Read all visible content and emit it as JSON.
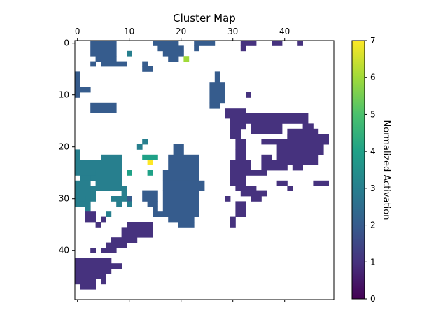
{
  "chart_data": {
    "type": "heatmap",
    "title": "Cluster Map",
    "x_ticks": [
      0,
      10,
      20,
      30,
      40
    ],
    "y_ticks": [
      0,
      10,
      20,
      30,
      40
    ],
    "colorbar": {
      "label": "Normalized Activation",
      "min": 0,
      "max": 7,
      "ticks": [
        0,
        1,
        2,
        3,
        4,
        5,
        6,
        7
      ],
      "colormap": "viridis"
    },
    "grid_size": [
      50,
      50
    ],
    "blank_cells": "white (no value)",
    "regions": [
      {
        "value": 2,
        "rects": [
          [
            3,
            0,
            8,
            3
          ],
          [
            4,
            3,
            8,
            4
          ],
          [
            5,
            4,
            10,
            5
          ],
          [
            3,
            4,
            4,
            5
          ],
          [
            15,
            0,
            20,
            1
          ],
          [
            16,
            1,
            21,
            2
          ],
          [
            17,
            2,
            21,
            3
          ],
          [
            18,
            3,
            20,
            4
          ],
          [
            23,
            0,
            27,
            1
          ],
          [
            23,
            1,
            24,
            2
          ],
          [
            13,
            4,
            14,
            5
          ],
          [
            13,
            5,
            15,
            6
          ],
          [
            27,
            6,
            28,
            8
          ],
          [
            26,
            8,
            29,
            12
          ],
          [
            26,
            12,
            28,
            13
          ],
          [
            0,
            6,
            1,
            10
          ],
          [
            1,
            9,
            3,
            10
          ],
          [
            0,
            10,
            1,
            11
          ],
          [
            3,
            12,
            8,
            14
          ],
          [
            19,
            20,
            21,
            22
          ],
          [
            18,
            22,
            24,
            25
          ],
          [
            17,
            25,
            24,
            27
          ],
          [
            17,
            27,
            25,
            29
          ],
          [
            17,
            29,
            24,
            33
          ],
          [
            15,
            33,
            24,
            34
          ],
          [
            18,
            34,
            23,
            35
          ],
          [
            20,
            35,
            23,
            36
          ],
          [
            13,
            29,
            16,
            31
          ],
          [
            14,
            31,
            16,
            32
          ],
          [
            15,
            32,
            16,
            33
          ],
          [
            10,
            30,
            11,
            31
          ]
        ]
      },
      {
        "value": 3,
        "rects": [
          [
            10,
            2,
            11,
            3
          ],
          [
            13,
            19,
            14,
            20
          ],
          [
            12,
            20,
            13,
            21
          ],
          [
            0,
            21,
            1,
            23
          ],
          [
            0,
            23,
            5,
            26
          ],
          [
            1,
            26,
            3,
            27
          ],
          [
            5,
            22,
            9,
            25
          ],
          [
            4,
            25,
            9,
            29
          ],
          [
            3,
            26,
            4,
            27
          ],
          [
            0,
            27,
            3,
            32
          ],
          [
            3,
            28,
            4,
            31
          ],
          [
            9,
            28,
            10,
            31
          ],
          [
            8,
            30,
            9,
            32
          ],
          [
            7,
            30,
            8,
            31
          ],
          [
            10,
            31,
            11,
            32
          ],
          [
            2,
            32,
            3,
            33
          ],
          [
            6,
            33,
            7,
            34
          ],
          [
            1,
            30,
            2,
            31
          ]
        ]
      },
      {
        "value": 1,
        "rects": [
          [
            32,
            0,
            35,
            1
          ],
          [
            38,
            0,
            40,
            1
          ],
          [
            43,
            0,
            44,
            1
          ],
          [
            32,
            1,
            33,
            2
          ],
          [
            33,
            10,
            34,
            11
          ],
          [
            29,
            13,
            33,
            15
          ],
          [
            30,
            15,
            33,
            17
          ],
          [
            33,
            14,
            45,
            16
          ],
          [
            34,
            16,
            40,
            18
          ],
          [
            30,
            17,
            32,
            19
          ],
          [
            31,
            19,
            33,
            21
          ],
          [
            41,
            17,
            47,
            20
          ],
          [
            44,
            16,
            46,
            17
          ],
          [
            39,
            20,
            48,
            22
          ],
          [
            41,
            18,
            49,
            20
          ],
          [
            36,
            19,
            49,
            20
          ],
          [
            39,
            22,
            47,
            24
          ],
          [
            37,
            23,
            43,
            24
          ],
          [
            36,
            22,
            38,
            25
          ],
          [
            38,
            24,
            41,
            25
          ],
          [
            42,
            24,
            44,
            25
          ],
          [
            31,
            21,
            33,
            23
          ],
          [
            30,
            23,
            34,
            25
          ],
          [
            30,
            25,
            37,
            26
          ],
          [
            30,
            26,
            33,
            28
          ],
          [
            31,
            28,
            35,
            29
          ],
          [
            32,
            29,
            37,
            30
          ],
          [
            34,
            30,
            36,
            31
          ],
          [
            39,
            27,
            41,
            28
          ],
          [
            46,
            27,
            49,
            28
          ],
          [
            41,
            28,
            42,
            29
          ],
          [
            31,
            31,
            33,
            34
          ],
          [
            30,
            34,
            31,
            36
          ],
          [
            29,
            30,
            30,
            31
          ],
          [
            9,
            36,
            15,
            38
          ],
          [
            10,
            35,
            15,
            36
          ],
          [
            7,
            38,
            12,
            39
          ],
          [
            6,
            39,
            10,
            40
          ],
          [
            5,
            40,
            8,
            41
          ],
          [
            3,
            40,
            4,
            41
          ],
          [
            2,
            33,
            4,
            35
          ],
          [
            5,
            34,
            6,
            35
          ],
          [
            4,
            35,
            5,
            36
          ],
          [
            0,
            42,
            7,
            45
          ],
          [
            6,
            42,
            7,
            43
          ],
          [
            7,
            43,
            9,
            44
          ],
          [
            0,
            45,
            5,
            46
          ],
          [
            5,
            44,
            6,
            47
          ],
          [
            0,
            46,
            4,
            47
          ],
          [
            1,
            47,
            4,
            48
          ]
        ]
      },
      {
        "value": 4,
        "rects": [
          [
            13,
            22,
            16,
            23
          ],
          [
            14,
            25,
            15,
            26
          ],
          [
            10,
            25,
            11,
            26
          ]
        ]
      },
      {
        "value": 6,
        "rects": [
          [
            21,
            3,
            22,
            4
          ]
        ]
      },
      {
        "value": 7,
        "rects": [
          [
            14,
            23,
            15,
            24
          ]
        ]
      }
    ]
  }
}
